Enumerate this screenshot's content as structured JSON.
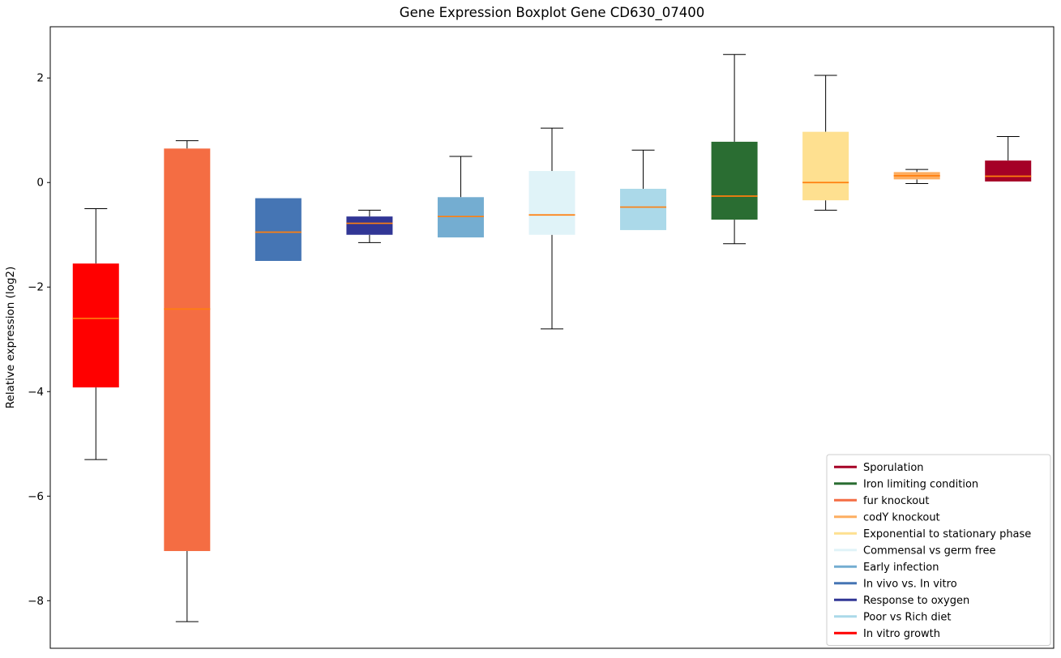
{
  "chart_data": {
    "type": "boxplot",
    "title": "Gene Expression Boxplot Gene CD630_07400",
    "ylabel": "Relative expression (log2)",
    "xlabel": "",
    "ylim": [
      -8.91,
      2.98
    ],
    "yticks": [
      {
        "value": 2,
        "label": "2"
      },
      {
        "value": 0,
        "label": "0"
      },
      {
        "value": -2,
        "label": "−2"
      },
      {
        "value": -4,
        "label": "−4"
      },
      {
        "value": -6,
        "label": "−6"
      },
      {
        "value": -8,
        "label": "−8"
      }
    ],
    "grid": false,
    "axis_color": "#000000",
    "median_color": "#ff7f0e",
    "whisker_color": "#000000",
    "groups": [
      {
        "name": "In vitro growth",
        "color": "#ff0000",
        "whislo": -5.3,
        "q1": -3.92,
        "med": -2.6,
        "q3": -1.55,
        "whishi": -0.5
      },
      {
        "name": "fur knockout",
        "color": "#f46d43",
        "whislo": -8.4,
        "q1": -7.05,
        "med": -2.42,
        "q3": 0.65,
        "whishi": 0.8
      },
      {
        "name": "In vivo vs. In vitro",
        "color": "#4575b4",
        "whislo": -1.5,
        "q1": -1.5,
        "med": -0.95,
        "q3": -0.3,
        "whishi": -0.3
      },
      {
        "name": "Response to oxygen",
        "color": "#313695",
        "whislo": -1.15,
        "q1": -1.0,
        "med": -0.78,
        "q3": -0.65,
        "whishi": -0.53
      },
      {
        "name": "Early infection",
        "color": "#74add1",
        "whislo": -1.05,
        "q1": -1.05,
        "med": -0.65,
        "q3": -0.28,
        "whishi": 0.5
      },
      {
        "name": "Commensal vs germ free",
        "color": "#e0f3f8",
        "whislo": -2.8,
        "q1": -1.0,
        "med": -0.62,
        "q3": 0.22,
        "whishi": 1.04
      },
      {
        "name": "Poor vs Rich diet",
        "color": "#abd9e9",
        "whislo": -0.91,
        "q1": -0.91,
        "med": -0.47,
        "q3": -0.12,
        "whishi": 0.62
      },
      {
        "name": "Iron limiting condition",
        "color": "#2a6d32",
        "whislo": -1.17,
        "q1": -0.71,
        "med": -0.26,
        "q3": 0.78,
        "whishi": 2.45
      },
      {
        "name": "Exponential to stationary phase",
        "color": "#fee090",
        "whislo": -0.53,
        "q1": -0.34,
        "med": 0.0,
        "q3": 0.97,
        "whishi": 2.05
      },
      {
        "name": "codY knockout",
        "color": "#fdae61",
        "whislo": -0.02,
        "q1": 0.06,
        "med": 0.13,
        "q3": 0.2,
        "whishi": 0.25
      },
      {
        "name": "Sporulation",
        "color": "#a50026",
        "whislo": 0.02,
        "q1": 0.02,
        "med": 0.12,
        "q3": 0.42,
        "whishi": 0.88
      }
    ],
    "legend": {
      "position": "lower right",
      "entries": [
        "Sporulation",
        "Iron limiting condition",
        "fur knockout",
        "codY knockout",
        "Exponential to stationary phase",
        "Commensal vs germ free",
        "Early infection",
        "In vivo vs. In vitro",
        "Response to oxygen",
        "Poor vs Rich diet",
        "In vitro growth"
      ]
    }
  }
}
